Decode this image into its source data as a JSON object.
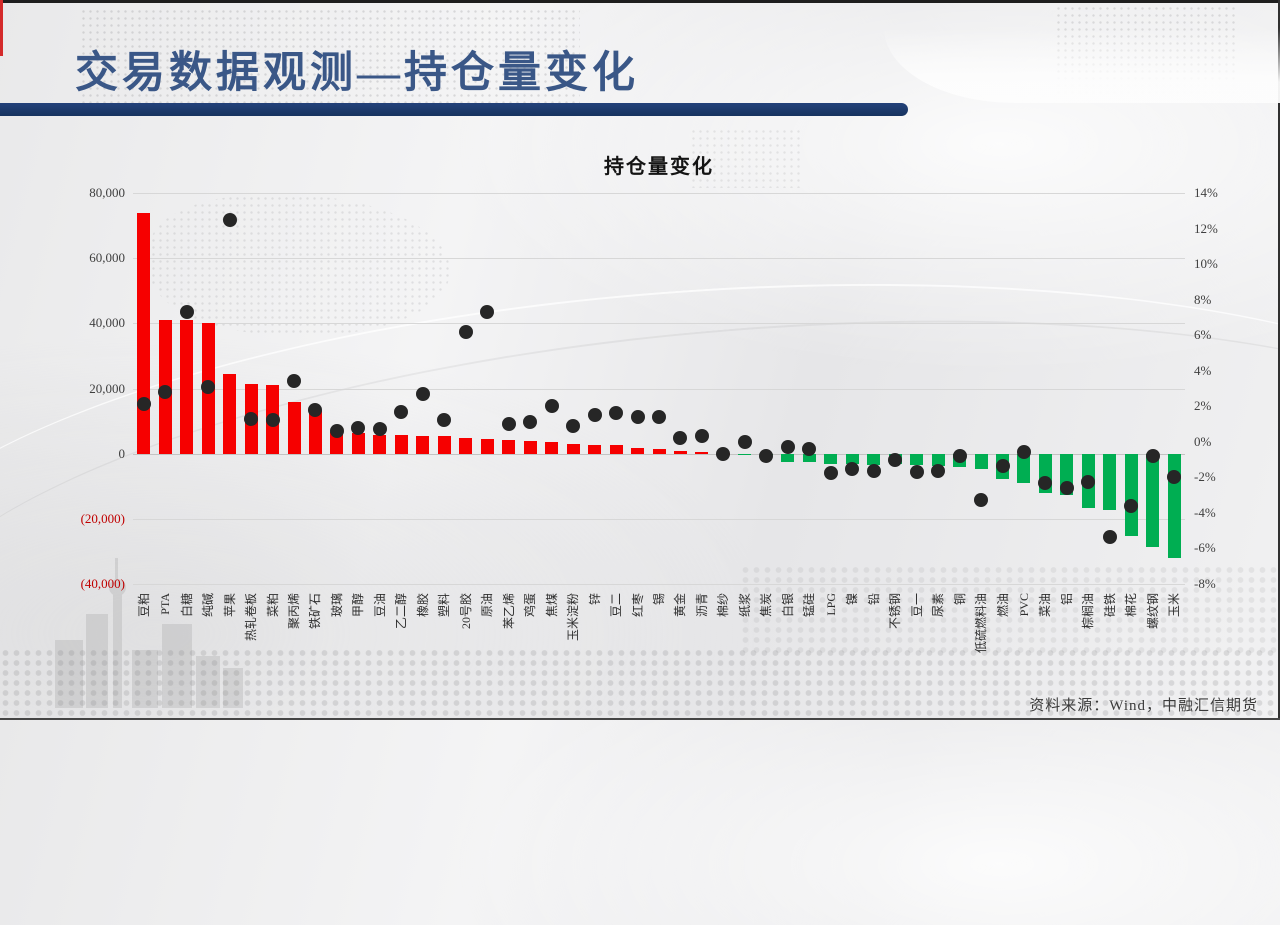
{
  "slide": {
    "title": "交易数据观测—持仓量变化",
    "source_note": "资料来源：Wind，中融汇信期货"
  },
  "chart_data": {
    "type": "bar",
    "subtype": "combo-bar-with-scatter-dual-axis",
    "title": "持仓量变化",
    "grid": true,
    "legend": "none",
    "categories": [
      "豆粕",
      "PTA",
      "白糖",
      "纯碱",
      "苹果",
      "热轧卷板",
      "菜粕",
      "聚丙烯",
      "铁矿石",
      "玻璃",
      "甲醇",
      "豆油",
      "乙二醇",
      "橡胶",
      "塑料",
      "20号胶",
      "原油",
      "苯乙烯",
      "鸡蛋",
      "焦煤",
      "玉米淀粉",
      "锌",
      "豆二",
      "红枣",
      "锡",
      "黄金",
      "沥青",
      "棉纱",
      "纸浆",
      "焦炭",
      "白银",
      "锰硅",
      "LPG",
      "镍",
      "铅",
      "不锈钢",
      "豆一",
      "尿素",
      "铜",
      "低硫燃料油",
      "燃油",
      "PVC",
      "菜油",
      "铝",
      "棕榈油",
      "硅铁",
      "棉花",
      "螺纹钢",
      "玉米"
    ],
    "series": [
      {
        "id": "open-interest-change-bars",
        "type": "bar",
        "axis": "left",
        "values": [
          74000,
          41000,
          41000,
          40000,
          24500,
          21500,
          21000,
          16000,
          13300,
          6700,
          6400,
          5800,
          5600,
          5500,
          5300,
          4800,
          4500,
          4300,
          3800,
          3500,
          3100,
          2800,
          2700,
          1700,
          1400,
          700,
          500,
          150,
          -300,
          -500,
          -2500,
          -2600,
          -3200,
          -3300,
          -3400,
          -3300,
          -3500,
          -3800,
          -4100,
          -4700,
          -7800,
          -9000,
          -12100,
          -12600,
          -16700,
          -17200,
          -25400,
          -28500,
          -32000
        ]
      },
      {
        "id": "open-interest-change-percent-dots",
        "type": "scatter",
        "axis": "right",
        "values": [
          2.1,
          2.8,
          7.3,
          3.1,
          12.5,
          1.3,
          1.2,
          3.4,
          1.8,
          0.6,
          0.8,
          0.7,
          1.7,
          2.7,
          1.2,
          6.2,
          7.3,
          1.0,
          1.1,
          2.0,
          0.9,
          1.5,
          1.6,
          1.4,
          1.4,
          0.2,
          0.3,
          -0.7,
          0.0,
          -0.8,
          -0.3,
          -0.4,
          -1.75,
          -1.55,
          -1.65,
          -1.0,
          -1.7,
          -1.65,
          -0.8,
          -3.3,
          -1.35,
          -0.6,
          -2.3,
          -2.6,
          -2.25,
          -5.35,
          -3.6,
          -0.8,
          -2.0
        ]
      }
    ],
    "left_axis": {
      "min": -40000,
      "max": 80000,
      "step": 20000,
      "tick_labels": [
        "80,000",
        "60,000",
        "40,000",
        "20,000",
        "0",
        "(20,000)",
        "(40,000)"
      ]
    },
    "right_axis": {
      "min": -8,
      "max": 14,
      "step": 2,
      "tick_labels": [
        "14%",
        "12%",
        "10%",
        "8%",
        "6%",
        "4%",
        "2%",
        "0%",
        "-2%",
        "-4%",
        "-6%",
        "-8%"
      ]
    },
    "colors": {
      "bar_positive": "#f60000",
      "bar_negative": "#00ae52",
      "marker": "#262626",
      "negative_tick_label": "#c00000",
      "accent_navy": "#17335f",
      "title_blue": "#3a5787"
    }
  }
}
